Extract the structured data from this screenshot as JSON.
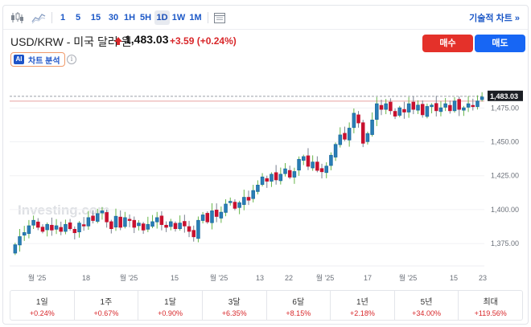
{
  "toolbar": {
    "chart_type_icons": [
      "candlestick-icon",
      "area-chart-icon"
    ],
    "timeframes": [
      "1",
      "5",
      "15",
      "30",
      "1H",
      "5H",
      "1D",
      "1W",
      "1M"
    ],
    "active_timeframe": "1D",
    "calendar_icon": "calendar-icon",
    "technical_chart_label": "기술적 차트 »"
  },
  "header": {
    "pair_title": "USD/KRW - 미국 달러 원",
    "price": "1,483.03",
    "change": "+3.59",
    "change_pct": "(+0.24%)",
    "buy_label": "매수",
    "sell_label": "매도",
    "ai_badge": "AI",
    "ai_label": "차트 분석",
    "info_glyph": "i"
  },
  "colors": {
    "up": "#1f9e89",
    "down": "#c8102e",
    "accent": "#1c58c7",
    "buy": "#e4312a",
    "sell": "#1766f4"
  },
  "chart_data": {
    "type": "candlestick",
    "watermark": "Investing.com",
    "last_price_label": "1,483.03",
    "ylim": [
      1362,
      1490
    ],
    "y_ticks": [
      1375,
      1400,
      1425,
      1450,
      1475
    ],
    "y_tick_labels": [
      "1,375.00",
      "1,400.00",
      "1,425.00",
      "1,450.00",
      "1,475.00"
    ],
    "x_tick_labels": [
      "월 '25",
      "18",
      "월 '25",
      "15",
      "월 '25",
      "13",
      "22",
      "월 '25",
      "17",
      "월 '25",
      "15",
      "23"
    ],
    "closes": [
      1374,
      1380,
      1383,
      1388,
      1392,
      1387,
      1384,
      1389,
      1385,
      1388,
      1384,
      1389,
      1386,
      1383,
      1390,
      1388,
      1394,
      1392,
      1397,
      1399,
      1391,
      1386,
      1395,
      1387,
      1394,
      1392,
      1387,
      1390,
      1385,
      1389,
      1391,
      1394,
      1389,
      1387,
      1391,
      1386,
      1390,
      1388,
      1384,
      1380,
      1392,
      1396,
      1391,
      1399,
      1395,
      1398,
      1404,
      1406,
      1401,
      1405,
      1409,
      1407,
      1414,
      1418,
      1424,
      1421,
      1426,
      1422,
      1426,
      1430,
      1424,
      1428,
      1437,
      1439,
      1432,
      1435,
      1429,
      1428,
      1432,
      1440,
      1448,
      1455,
      1452,
      1460,
      1471,
      1464,
      1449,
      1456,
      1466,
      1478,
      1474,
      1478,
      1473,
      1469,
      1475,
      1472,
      1478,
      1474,
      1477,
      1470,
      1476,
      1477,
      1473,
      1475,
      1478,
      1473,
      1480,
      1474,
      1475,
      1478,
      1476,
      1480,
      1483
    ]
  },
  "periods": [
    {
      "label": "1일",
      "value": "+0.24%"
    },
    {
      "label": "1주",
      "value": "+0.67%"
    },
    {
      "label": "1달",
      "value": "+0.90%"
    },
    {
      "label": "3달",
      "value": "+6.35%"
    },
    {
      "label": "6달",
      "value": "+8.15%"
    },
    {
      "label": "1년",
      "value": "+2.18%"
    },
    {
      "label": "5년",
      "value": "+34.00%"
    },
    {
      "label": "최대",
      "value": "+119.56%"
    }
  ]
}
